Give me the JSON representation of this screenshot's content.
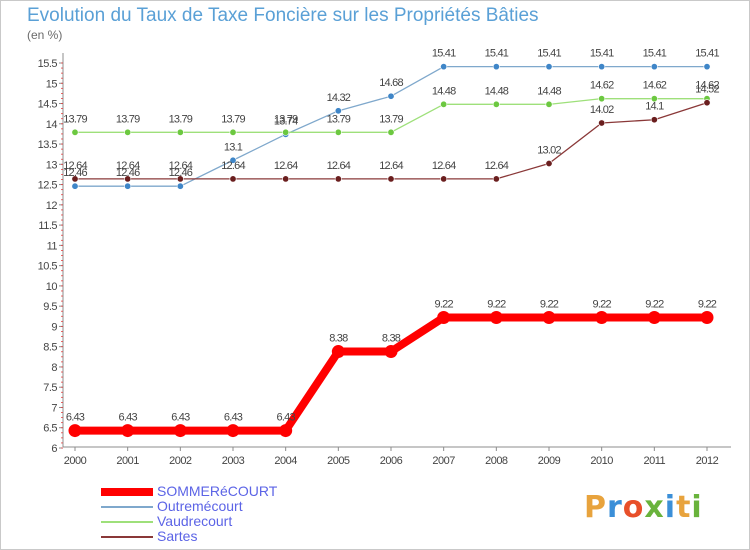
{
  "title": "Evolution du Taux de Taxe Foncière sur les Propriétés Bâties",
  "unit": "(en %)",
  "logo": {
    "letters": [
      "P",
      "r",
      "o",
      "x",
      "i",
      "t",
      "i"
    ],
    "colors": [
      "#e8a33d",
      "#3b8fd8",
      "#e8502a",
      "#69b33c",
      "#3b8fd8",
      "#e8a33d",
      "#69b33c"
    ]
  },
  "chart_data": {
    "type": "line",
    "x": [
      "2000",
      "2001",
      "2002",
      "2003",
      "2004",
      "2005",
      "2006",
      "2007",
      "2008",
      "2009",
      "2010",
      "2011",
      "2012"
    ],
    "ylim": [
      6,
      15.5
    ],
    "yticks": [
      "6",
      "6.5",
      "7",
      "7.5",
      "8",
      "8.5",
      "9",
      "9.5",
      "10",
      "10.5",
      "11",
      "11.5",
      "12",
      "12.5",
      "13",
      "13.5",
      "14",
      "14.5",
      "15",
      "15.5"
    ],
    "grid": false,
    "legend_position": "bottom-left",
    "series": [
      {
        "name": "SOMMERéCOURT",
        "color": "#ff0000",
        "marker": "#ff0000",
        "width": 8,
        "values": [
          6.43,
          6.43,
          6.43,
          6.43,
          6.43,
          8.38,
          8.38,
          9.22,
          9.22,
          9.22,
          9.22,
          9.22,
          9.22
        ],
        "labels": [
          "6.43",
          "6.43",
          "6.43",
          "6.43",
          "6.43",
          "8.38",
          "8.38",
          "9.22",
          "9.22",
          "9.22",
          "9.22",
          "9.22",
          "9.22"
        ]
      },
      {
        "name": "Outremécourt",
        "color": "#7fa8cc",
        "marker": "#3f86c8",
        "width": 1.3,
        "values": [
          12.46,
          12.46,
          12.46,
          13.1,
          13.74,
          14.32,
          14.68,
          15.41,
          15.41,
          15.41,
          15.41,
          15.41,
          15.41
        ],
        "labels": [
          "12.46",
          "12.46",
          "12.46",
          "13.1",
          "13.74",
          "14.32",
          "14.68",
          "15.41",
          "15.41",
          "15.41",
          "15.41",
          "15.41",
          "15.41"
        ]
      },
      {
        "name": "Vaudrecourt",
        "color": "#9ee07a",
        "marker": "#6cc840",
        "width": 1.3,
        "values": [
          13.79,
          13.79,
          13.79,
          13.79,
          13.79,
          13.79,
          13.79,
          14.48,
          14.48,
          14.48,
          14.62,
          14.62,
          14.62
        ],
        "labels": [
          "13.79",
          "13.79",
          "13.79",
          "13.79",
          "13.79",
          "13.79",
          "13.79",
          "14.48",
          "14.48",
          "14.48",
          "14.62",
          "14.62",
          "14.62"
        ]
      },
      {
        "name": "Sartes",
        "color": "#8a3838",
        "marker": "#6a1e1e",
        "width": 1.3,
        "values": [
          12.64,
          12.64,
          12.64,
          12.64,
          12.64,
          12.64,
          12.64,
          12.64,
          12.64,
          13.02,
          14.02,
          14.1,
          14.52
        ],
        "labels": [
          "12.64",
          "12.64",
          "12.64",
          "12.64",
          "12.64",
          "12.64",
          "12.64",
          "12.64",
          "12.64",
          "13.02",
          "14.02",
          "14.1",
          "14.52"
        ]
      }
    ]
  }
}
